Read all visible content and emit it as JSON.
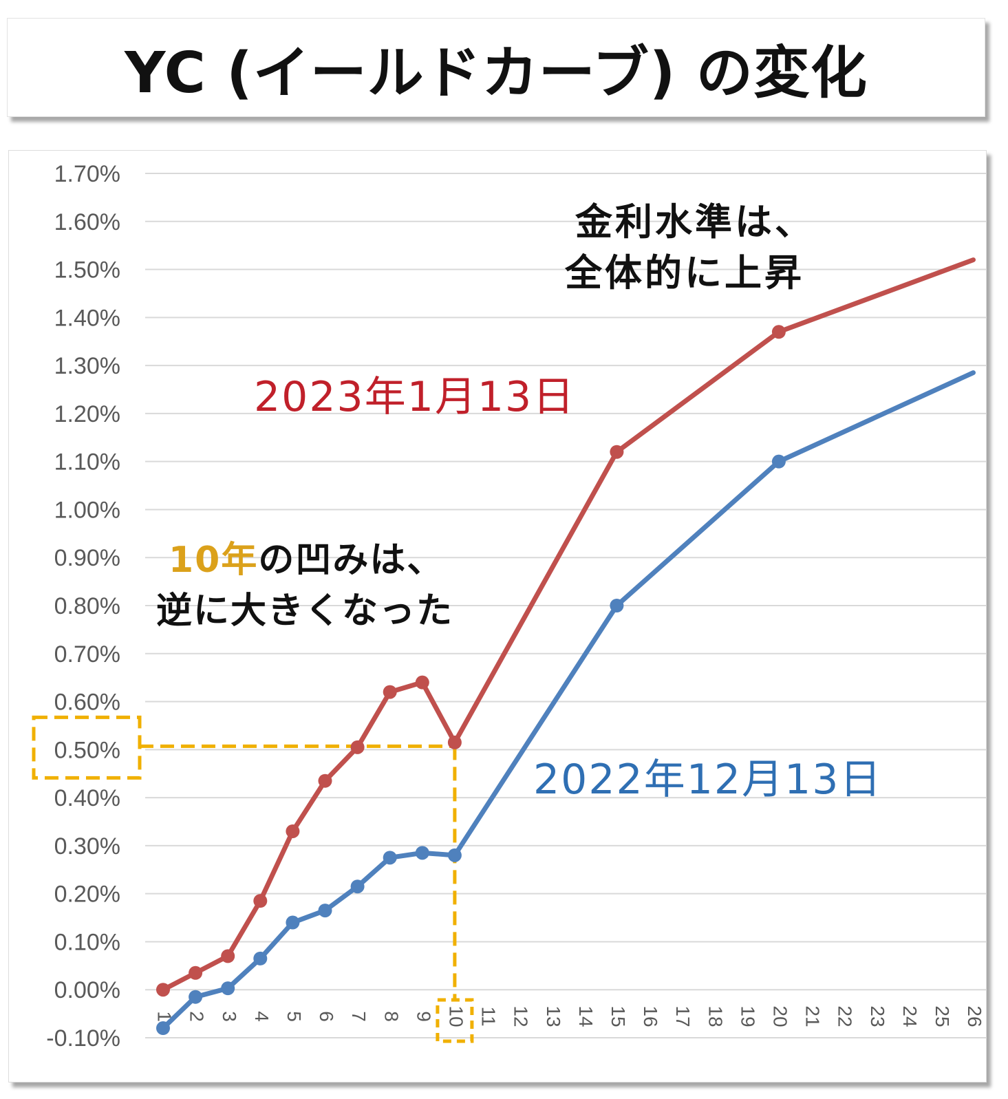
{
  "title": "YC (イールドカーブ) の変化",
  "chart_data": {
    "type": "line",
    "x": [
      "1",
      "2",
      "3",
      "4",
      "5",
      "6",
      "7",
      "8",
      "9",
      "10",
      "11",
      "12",
      "13",
      "14",
      "15",
      "16",
      "17",
      "18",
      "19",
      "20",
      "21",
      "22",
      "23",
      "24",
      "25",
      "26"
    ],
    "ylim": [
      -0.1,
      1.7
    ],
    "yticks": [
      "1.70%",
      "1.60%",
      "1.50%",
      "1.40%",
      "1.30%",
      "1.20%",
      "1.10%",
      "1.00%",
      "0.90%",
      "0.80%",
      "0.70%",
      "0.60%",
      "0.50%",
      "0.40%",
      "0.30%",
      "0.20%",
      "0.10%",
      "0.00%",
      "-0.10%"
    ],
    "grid": true,
    "series": [
      {
        "name": "2023年1月13日",
        "color": "#c0504d",
        "points": [
          [
            1,
            0.0
          ],
          [
            2,
            0.035
          ],
          [
            3,
            0.07
          ],
          [
            4,
            0.185
          ],
          [
            5,
            0.33
          ],
          [
            6,
            0.435
          ],
          [
            7,
            0.505
          ],
          [
            8,
            0.62
          ],
          [
            9,
            0.64
          ],
          [
            10,
            0.515
          ],
          [
            15,
            1.12
          ],
          [
            20,
            1.37
          ],
          [
            26,
            1.52
          ]
        ]
      },
      {
        "name": "2022年12月13日",
        "color": "#4f81bd",
        "points": [
          [
            1,
            -0.08
          ],
          [
            2,
            -0.015
          ],
          [
            3,
            0.003
          ],
          [
            4,
            0.065
          ],
          [
            5,
            0.14
          ],
          [
            6,
            0.165
          ],
          [
            7,
            0.215
          ],
          [
            8,
            0.275
          ],
          [
            9,
            0.285
          ],
          [
            10,
            0.28
          ],
          [
            15,
            0.8
          ],
          [
            20,
            1.1
          ],
          [
            26,
            1.285
          ]
        ]
      }
    ],
    "highlight": {
      "x": "10",
      "y": "0.50%",
      "color": "#f0b000"
    },
    "annotations": {
      "rise_line1": "金利水準は、",
      "rise_line2": "全体的に上昇",
      "dent_highlight": "10年",
      "dent_rest": "の凹みは、",
      "dent_line2": "逆に大きくなった"
    }
  }
}
